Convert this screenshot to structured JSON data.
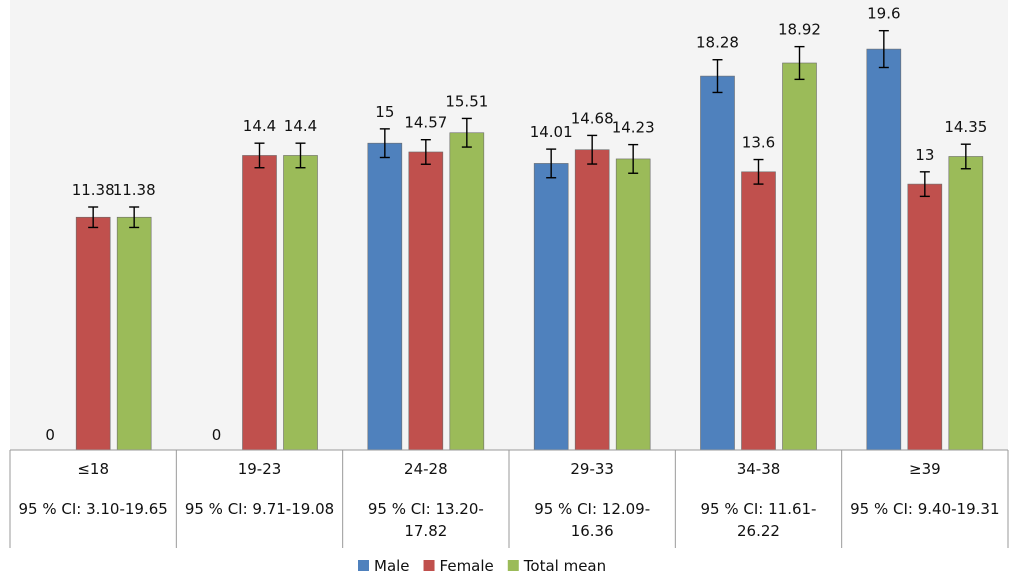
{
  "chart_data": {
    "type": "bar",
    "title": "",
    "xlabel": "",
    "ylabel": "",
    "ylim": [
      0,
      22
    ],
    "categories": [
      "≤18",
      "19-23",
      "24-28",
      "29-33",
      "34-38",
      "≥39"
    ],
    "ci_labels": [
      [
        "95 % CI: 3.10-19.65"
      ],
      [
        "95 % CI: 9.71-19.08"
      ],
      [
        "95 % CI: 13.20-",
        "17.82"
      ],
      [
        "95 % CI: 12.09-",
        "16.36"
      ],
      [
        "95 % CI: 11.61-",
        "26.22"
      ],
      [
        "95 % CI: 9.40-19.31"
      ]
    ],
    "series": [
      {
        "name": "Male",
        "color": "#4f81bd",
        "values": [
          0,
          0,
          15,
          14.01,
          18.28,
          19.6
        ],
        "labels": [
          "0",
          "0",
          "15",
          "14.01",
          "18.28",
          "19.6"
        ],
        "error": [
          0,
          0,
          0.7,
          0.7,
          0.8,
          0.9
        ]
      },
      {
        "name": "Female",
        "color": "#c0504d",
        "values": [
          11.38,
          14.4,
          14.57,
          14.68,
          13.6,
          13
        ],
        "labels": [
          "11.38",
          "14.4",
          "14.57",
          "14.68",
          "13.6",
          "13"
        ],
        "error": [
          0.5,
          0.6,
          0.6,
          0.7,
          0.6,
          0.6
        ]
      },
      {
        "name": "Total mean",
        "color": "#9bbb59",
        "values": [
          11.38,
          14.4,
          15.51,
          14.23,
          18.92,
          14.35
        ],
        "labels": [
          "11.38",
          "14.4",
          "15.51",
          "14.23",
          "18.92",
          "14.35"
        ],
        "error": [
          0.5,
          0.6,
          0.7,
          0.7,
          0.8,
          0.6
        ]
      }
    ],
    "legend_position": "bottom",
    "grid": false
  }
}
